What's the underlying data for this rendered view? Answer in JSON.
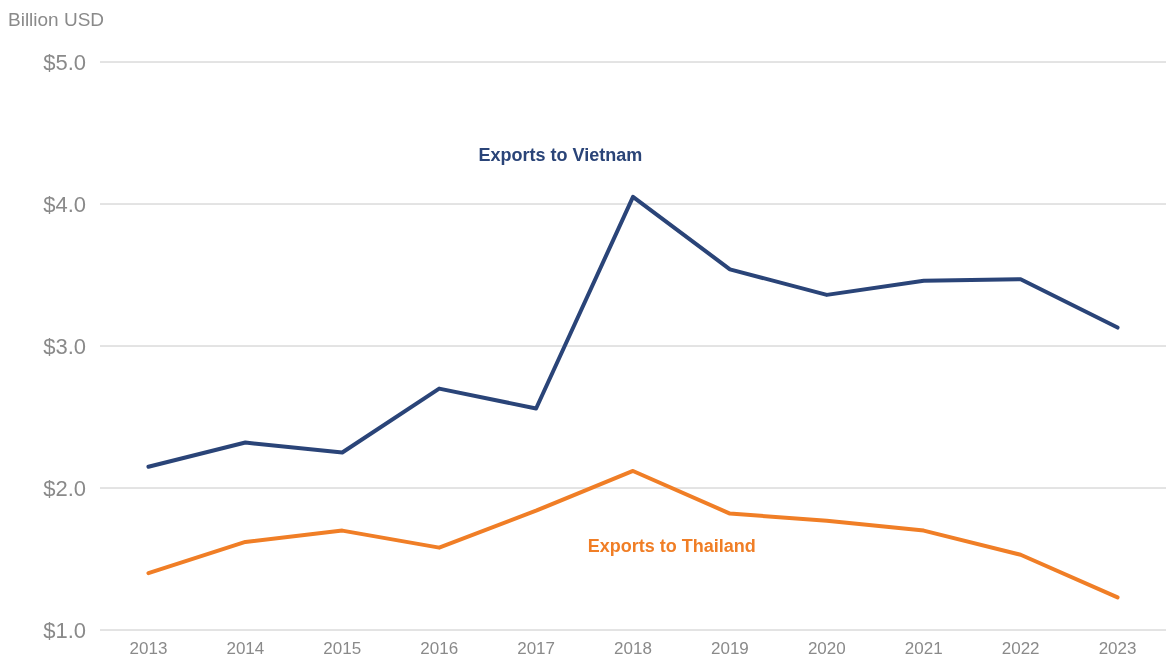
{
  "chart_data": {
    "type": "line",
    "ylabel": "Billion USD",
    "categories": [
      "2013",
      "2014",
      "2015",
      "2016",
      "2017",
      "2018",
      "2019",
      "2020",
      "2021",
      "2022",
      "2023"
    ],
    "series": [
      {
        "name": "Exports to Vietnam",
        "color": "#2a4478",
        "values": [
          2.15,
          2.32,
          2.25,
          2.7,
          2.56,
          4.05,
          3.54,
          3.36,
          3.46,
          3.47,
          3.13
        ]
      },
      {
        "name": "Exports to Thailand",
        "color": "#f07e26",
        "values": [
          1.4,
          1.62,
          1.7,
          1.58,
          1.84,
          2.12,
          1.82,
          1.77,
          1.7,
          1.53,
          1.23
        ]
      }
    ],
    "ylim": [
      1,
      5
    ],
    "yticks": [
      {
        "value": 1,
        "label": "$1.0"
      },
      {
        "value": 2,
        "label": "$2.0"
      },
      {
        "value": 3,
        "label": "$3.0"
      },
      {
        "value": 4,
        "label": "$4.0"
      },
      {
        "value": 5,
        "label": "$5.0"
      }
    ],
    "grid": "y",
    "marker": "none",
    "line_style": "solid"
  }
}
